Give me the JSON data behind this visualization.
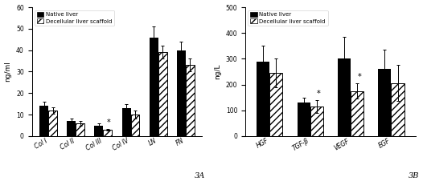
{
  "chart_A": {
    "categories": [
      "Col I",
      "Col II",
      "Col III",
      "Col IV",
      "LN",
      "FN"
    ],
    "native_values": [
      14,
      7,
      5,
      13,
      46,
      40
    ],
    "native_errors": [
      2,
      1,
      1,
      2,
      5,
      4
    ],
    "decell_values": [
      12,
      6,
      3,
      10,
      39,
      33
    ],
    "decell_errors": [
      1.5,
      1,
      0.5,
      2,
      3,
      3
    ],
    "ylabel": "ng/ml",
    "ylim": [
      0,
      60
    ],
    "yticks": [
      0,
      10,
      20,
      30,
      40,
      50,
      60
    ],
    "label": "3A",
    "star_idx": 2
  },
  "chart_B": {
    "categories": [
      "HGF",
      "TGF-β",
      "VEGF",
      "EGF"
    ],
    "native_values": [
      290,
      130,
      300,
      260
    ],
    "native_errors": [
      60,
      20,
      85,
      75
    ],
    "decell_values": [
      245,
      115,
      175,
      205
    ],
    "decell_errors": [
      55,
      25,
      30,
      70
    ],
    "ylabel": "ng/L",
    "ylim": [
      0,
      500
    ],
    "yticks": [
      0,
      100,
      200,
      300,
      400,
      500
    ],
    "label": "3B",
    "star_idx": [
      1,
      2
    ]
  },
  "bar_width": 0.32,
  "native_color": "#000000",
  "decell_color": "#000000",
  "decell_hatch": "////",
  "legend_labels": [
    "Native liver",
    "Decellular liver scaffold"
  ],
  "font_size": 5.5,
  "ylabel_fontsize": 6.5,
  "tick_fontsize": 5.5
}
